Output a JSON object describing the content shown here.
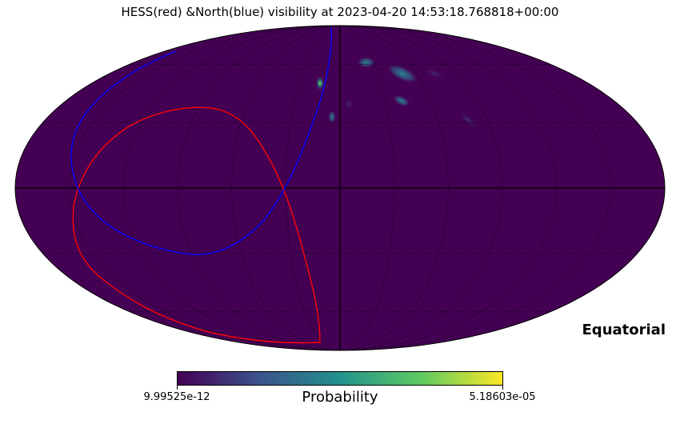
{
  "title": "HESS(red) &North(blue) visibility at 2023-04-20 14:53:18.768818+00:00",
  "projection": "mollweide",
  "coordinate_system_label": "Equatorial",
  "graticule": {
    "visible": true,
    "style": "dotted",
    "meridian_step_deg": 30,
    "parallel_step_deg": 30
  },
  "colorbar": {
    "label": "Probability",
    "min_label": "9.99525e-12",
    "max_label": "5.18603e-05",
    "colormap": "viridis",
    "colors": [
      "#440154",
      "#3b528b",
      "#21918c",
      "#5ec962",
      "#fde725"
    ]
  },
  "map_background_color": "#440154",
  "visibility_curves": [
    {
      "observatory": "HESS",
      "color": "#ff0000"
    },
    {
      "observatory": "North",
      "color": "#0000ff"
    }
  ]
}
